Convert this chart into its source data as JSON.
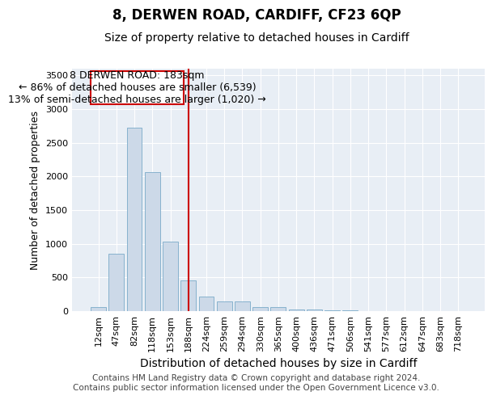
{
  "title": "8, DERWEN ROAD, CARDIFF, CF23 6QP",
  "subtitle": "Size of property relative to detached houses in Cardiff",
  "xlabel": "Distribution of detached houses by size in Cardiff",
  "ylabel": "Number of detached properties",
  "bar_color": "#ccd9e8",
  "bar_edge_color": "#7aaac8",
  "categories": [
    "12sqm",
    "47sqm",
    "82sqm",
    "118sqm",
    "153sqm",
    "188sqm",
    "224sqm",
    "259sqm",
    "294sqm",
    "330sqm",
    "365sqm",
    "400sqm",
    "436sqm",
    "471sqm",
    "506sqm",
    "541sqm",
    "577sqm",
    "612sqm",
    "647sqm",
    "683sqm",
    "718sqm"
  ],
  "values": [
    55,
    855,
    2730,
    2060,
    1030,
    455,
    215,
    150,
    150,
    60,
    60,
    30,
    20,
    10,
    8,
    5,
    5,
    3,
    3,
    2,
    2
  ],
  "vline_x": 5,
  "vline_color": "#cc0000",
  "annotation_line1": "8 DERWEN ROAD: 183sqm",
  "annotation_line2": "← 86% of detached houses are smaller (6,539)",
  "annotation_line3": "13% of semi-detached houses are larger (1,020) →",
  "annotation_box_color": "#cc0000",
  "ylim": [
    0,
    3600
  ],
  "yticks": [
    0,
    500,
    1000,
    1500,
    2000,
    2500,
    3000,
    3500
  ],
  "bg_color": "#e8eef5",
  "grid_color": "#ffffff",
  "footer": "Contains HM Land Registry data © Crown copyright and database right 2024.\nContains public sector information licensed under the Open Government Licence v3.0.",
  "title_fontsize": 12,
  "subtitle_fontsize": 10,
  "annotation_fontsize": 9,
  "ylabel_fontsize": 9,
  "xlabel_fontsize": 10,
  "footer_fontsize": 7.5,
  "tick_fontsize": 8
}
